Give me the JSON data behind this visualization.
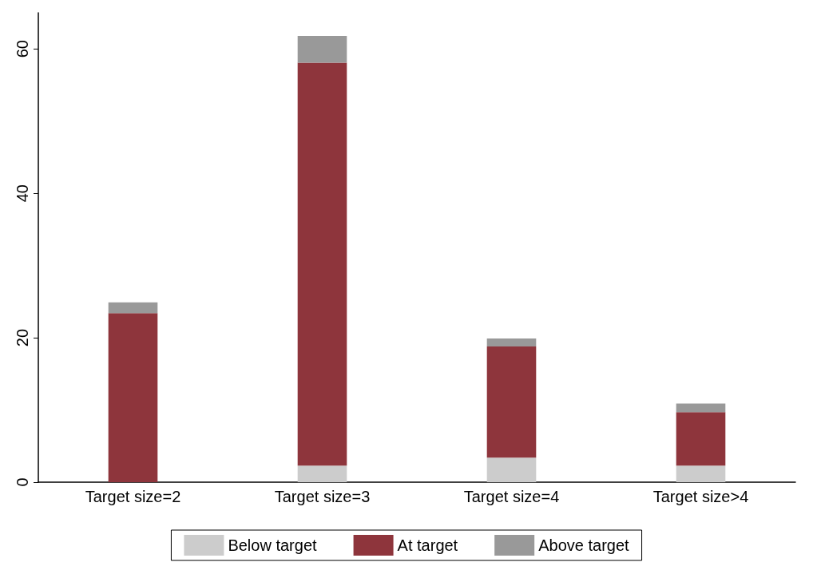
{
  "chart_data": {
    "type": "bar",
    "stacked": true,
    "categories": [
      "Target size=2",
      "Target size=3",
      "Target size=4",
      "Target size>4"
    ],
    "series": [
      {
        "name": "Below target",
        "color": "#cccccc",
        "values": [
          0,
          2.3,
          3.4,
          2.3
        ]
      },
      {
        "name": "At target",
        "color": "#8e353c",
        "values": [
          23.4,
          55.8,
          15.4,
          7.4
        ]
      },
      {
        "name": "Above target",
        "color": "#999999",
        "values": [
          1.5,
          3.7,
          1.1,
          1.2
        ]
      }
    ],
    "ylim": [
      0,
      65
    ],
    "yticks": [
      0,
      20,
      40,
      60
    ],
    "grid": false,
    "legend": "bottom"
  }
}
